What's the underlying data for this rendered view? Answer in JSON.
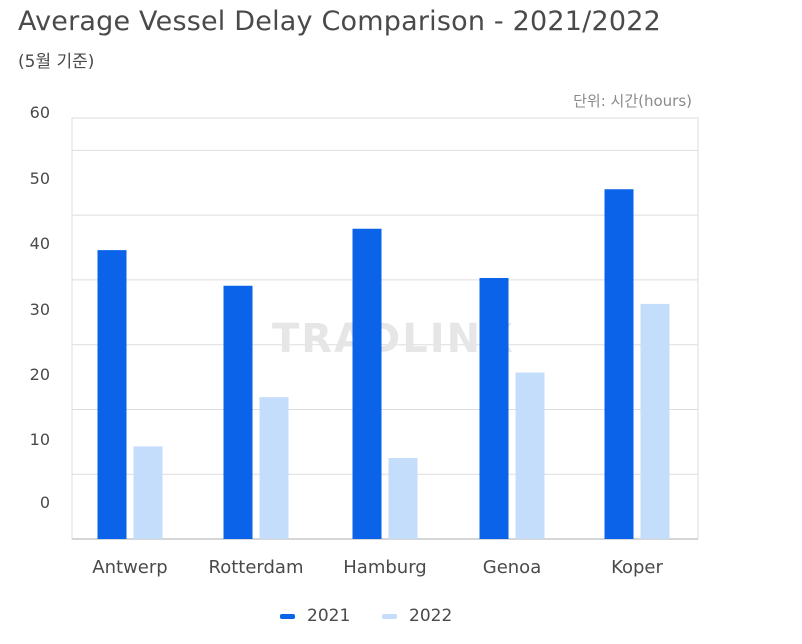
{
  "header": {
    "title": "Average Vessel Delay Comparison - 2021/2022",
    "subtitle": "(5월 기준)",
    "unit": "단위: 시간(hours)"
  },
  "watermark": "TRADLINX",
  "colors": {
    "series_2021": "#0a63e8",
    "series_2022": "#c4ddfb",
    "grid": "#dddddd"
  },
  "chart_data": {
    "type": "bar",
    "title": "Average Vessel Delay Comparison - 2021/2022",
    "subtitle": "(5월 기준)",
    "categories": [
      "Antwerp",
      "Rotterdam",
      "Hamburg",
      "Genoa",
      "Koper"
    ],
    "series": [
      {
        "name": "2021",
        "values": [
          44.6,
          39.1,
          47.9,
          40.3,
          54.0
        ]
      },
      {
        "name": "2022",
        "values": [
          14.3,
          21.9,
          12.5,
          25.7,
          36.3
        ]
      }
    ],
    "y_ticks": [
      "60",
      "50",
      "40",
      "30",
      "20",
      "10",
      "0"
    ],
    "ylim": [
      0,
      65
    ],
    "grid": true,
    "legend_position": "bottom"
  },
  "legend": {
    "items": [
      "2021",
      "2022"
    ]
  }
}
